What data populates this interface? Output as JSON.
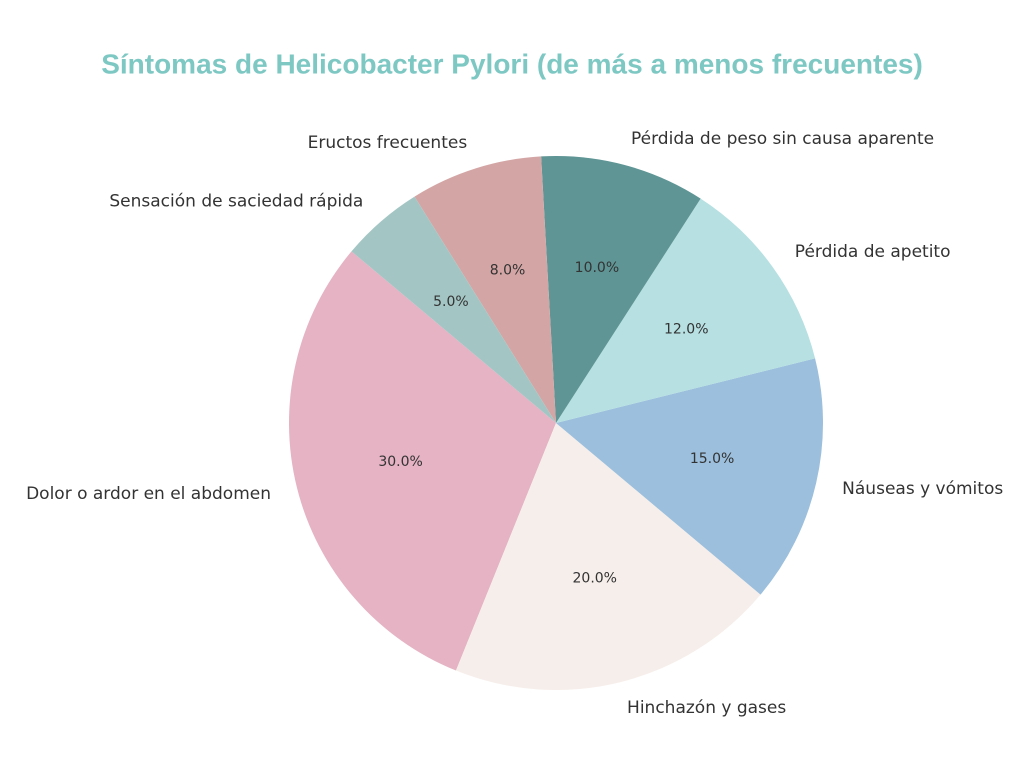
{
  "chart_data": {
    "type": "pie",
    "title": "Síntomas de Helicobacter Pylori (de más a menos frecuentes)",
    "categories": [
      "Dolor o ardor en el abdomen",
      "Hinchazón y gases",
      "Náuseas y vómitos",
      "Pérdida de apetito",
      "Pérdida de peso sin causa aparente",
      "Eructos frecuentes",
      "Sensación de saciedad rápida"
    ],
    "values": [
      30,
      20,
      15,
      12,
      10,
      8,
      5
    ],
    "value_labels": [
      "30.0%",
      "20.0%",
      "15.0%",
      "12.0%",
      "10.0%",
      "8.0%",
      "5.0%"
    ],
    "colors": [
      "#e5b3c3",
      "#f6eeea",
      "#9bbfdc",
      "#b6e0e2",
      "#5f9595",
      "#d4a5a5",
      "#a3c6c4"
    ]
  }
}
